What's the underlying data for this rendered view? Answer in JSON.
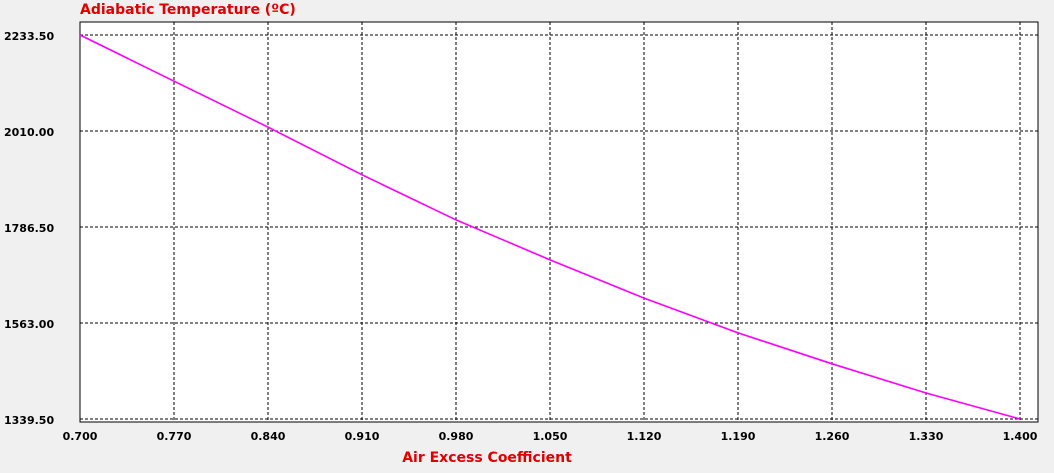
{
  "chart_data": {
    "type": "line",
    "title": "Adiabatic Temperature (ºC)",
    "x_label": "Air Excess Coefficient",
    "x": [
      0.7,
      0.77,
      0.84,
      0.91,
      0.98,
      1.05,
      1.12,
      1.19,
      1.26,
      1.33,
      1.4
    ],
    "series": [
      {
        "color": "#ff00ff",
        "values": [
          2233.5,
          2126,
          2019,
          1908,
          1803,
          1710,
          1621,
          1540,
          1468,
          1400,
          1339.5
        ]
      }
    ],
    "xlim": [
      0.7,
      1.4
    ],
    "xticks": [
      {
        "value": 0.7,
        "label": "0.700"
      },
      {
        "value": 0.77,
        "label": "0.770"
      },
      {
        "value": 0.84,
        "label": "0.840"
      },
      {
        "value": 0.91,
        "label": "0.910"
      },
      {
        "value": 0.98,
        "label": "0.980"
      },
      {
        "value": 1.05,
        "label": "1.050"
      },
      {
        "value": 1.12,
        "label": "1.120"
      },
      {
        "value": 1.19,
        "label": "1.190"
      },
      {
        "value": 1.26,
        "label": "1.260"
      },
      {
        "value": 1.33,
        "label": "1.330"
      },
      {
        "value": 1.4,
        "label": "1.400"
      }
    ],
    "ylim": [
      1339.5,
      2233.5
    ],
    "yticks": [
      {
        "value": 1339.5,
        "label": "1339.50"
      },
      {
        "value": 1563,
        "label": "1563.00"
      },
      {
        "value": 1786.5,
        "label": "1786.50"
      },
      {
        "value": 2010,
        "label": "2010.00"
      },
      {
        "value": 2233.5,
        "label": "2233.50"
      }
    ],
    "grid": true
  }
}
